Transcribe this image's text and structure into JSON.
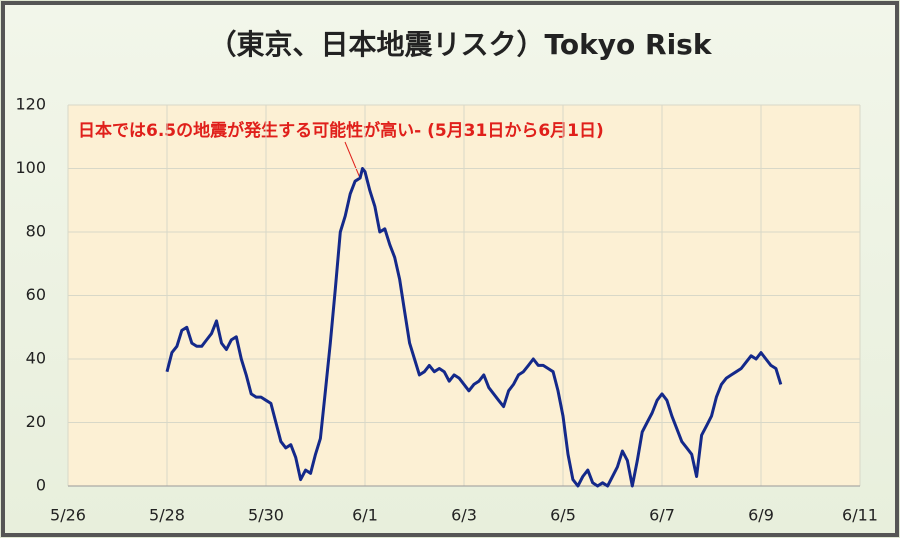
{
  "chart_data": {
    "type": "line",
    "title": "（東京、日本地震リスク）Tokyo Risk",
    "annotation": "日本では6.5の地震が発生する可能性が高い-  (5月31日から6月1日)",
    "color": "#14298a",
    "x": [
      2.0,
      2.1,
      2.2,
      2.3,
      2.4,
      2.5,
      2.6,
      2.7,
      2.8,
      2.9,
      3.0,
      3.1,
      3.2,
      3.3,
      3.4,
      3.5,
      3.6,
      3.7,
      3.8,
      3.9,
      4.0,
      4.1,
      4.2,
      4.3,
      4.4,
      4.5,
      4.6,
      4.7,
      4.8,
      4.9,
      5.0,
      5.1,
      5.2,
      5.3,
      5.4,
      5.5,
      5.6,
      5.7,
      5.8,
      5.9,
      5.95,
      6.0,
      6.1,
      6.2,
      6.3,
      6.4,
      6.5,
      6.6,
      6.7,
      6.8,
      6.9,
      7.0,
      7.1,
      7.2,
      7.3,
      7.4,
      7.5,
      7.6,
      7.7,
      7.8,
      7.9,
      8.0,
      8.1,
      8.2,
      8.3,
      8.4,
      8.5,
      8.6,
      8.7,
      8.8,
      8.9,
      9.0,
      9.1,
      9.2,
      9.3,
      9.4,
      9.5,
      9.6,
      9.7,
      9.8,
      9.9,
      10.0,
      10.1,
      10.2,
      10.3,
      10.4,
      10.5,
      10.6,
      10.7,
      10.8,
      10.9,
      11.0,
      11.1,
      11.2,
      11.3,
      11.4,
      11.5,
      11.6,
      11.7,
      11.8,
      11.9,
      12.0,
      12.1,
      12.2,
      12.3,
      12.4,
      12.5,
      12.6,
      12.7,
      12.8,
      12.9,
      13.0,
      13.1,
      13.2,
      13.3,
      13.4,
      13.5,
      13.6,
      13.7,
      13.8,
      13.9,
      14.0,
      14.1,
      14.2,
      14.3,
      14.4
    ],
    "values": [
      36,
      42,
      44,
      49,
      50,
      45,
      44,
      44,
      46,
      48,
      52,
      45,
      43,
      46,
      47,
      40,
      35,
      29,
      28,
      28,
      27,
      26,
      20,
      14,
      12,
      13,
      9,
      2,
      5,
      4,
      10,
      15,
      30,
      45,
      62,
      80,
      85,
      92,
      96,
      97,
      100,
      99,
      93,
      88,
      80,
      81,
      76,
      72,
      65,
      55,
      45,
      40,
      35,
      36,
      38,
      36,
      37,
      36,
      33,
      35,
      34,
      32,
      30,
      32,
      33,
      35,
      31,
      29,
      27,
      25,
      30,
      32,
      35,
      36,
      38,
      40,
      38,
      38,
      37,
      36,
      30,
      22,
      10,
      2,
      0,
      3,
      5,
      1,
      0,
      1,
      0,
      3,
      6,
      11,
      8,
      0,
      8,
      17,
      20,
      23,
      27,
      29,
      27,
      22,
      18,
      14,
      12,
      10,
      3,
      16,
      19,
      22,
      28,
      32,
      34,
      35,
      36,
      37,
      39,
      41,
      40,
      42,
      40,
      38,
      37,
      32
    ],
    "xlim": [
      0,
      16
    ],
    "xticks": [
      {
        "value": 0,
        "label": "5/26"
      },
      {
        "value": 2,
        "label": "5/28"
      },
      {
        "value": 4,
        "label": "5/30"
      },
      {
        "value": 6,
        "label": "6/1"
      },
      {
        "value": 8,
        "label": "6/3"
      },
      {
        "value": 10,
        "label": "6/5"
      },
      {
        "value": 12,
        "label": "6/7"
      },
      {
        "value": 14,
        "label": "6/9"
      },
      {
        "value": 16,
        "label": "6/11"
      }
    ],
    "ylim": [
      0,
      120
    ],
    "yticks": [
      0,
      20,
      40,
      60,
      80,
      100,
      120
    ],
    "grid": true
  }
}
